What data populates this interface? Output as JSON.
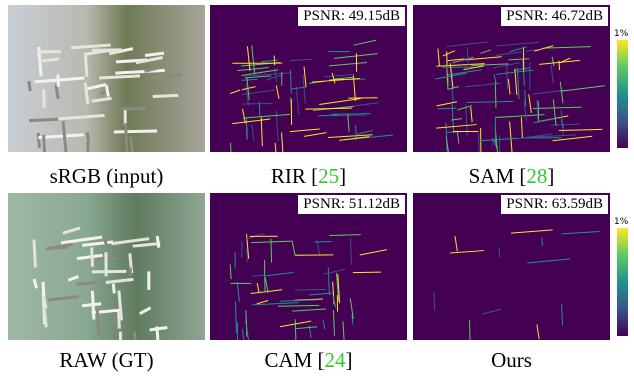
{
  "panels": [
    {
      "caption": "sRGB (input)"
    },
    {
      "caption": "RIR",
      "ref": "25",
      "psnr": "PSNR: 49.15dB"
    },
    {
      "caption": "SAM",
      "ref": "28",
      "psnr": "PSNR: 46.72dB"
    },
    {
      "caption": "RAW (GT)"
    },
    {
      "caption": "CAM",
      "ref": "24",
      "psnr": "PSNR: 51.12dB"
    },
    {
      "caption": "Ours",
      "psnr": "PSNR: 63.59dB"
    }
  ],
  "ref_brackets": [
    "[",
    "]"
  ],
  "colorbars": [
    {
      "label": "1%"
    },
    {
      "label": "1%"
    }
  ]
}
